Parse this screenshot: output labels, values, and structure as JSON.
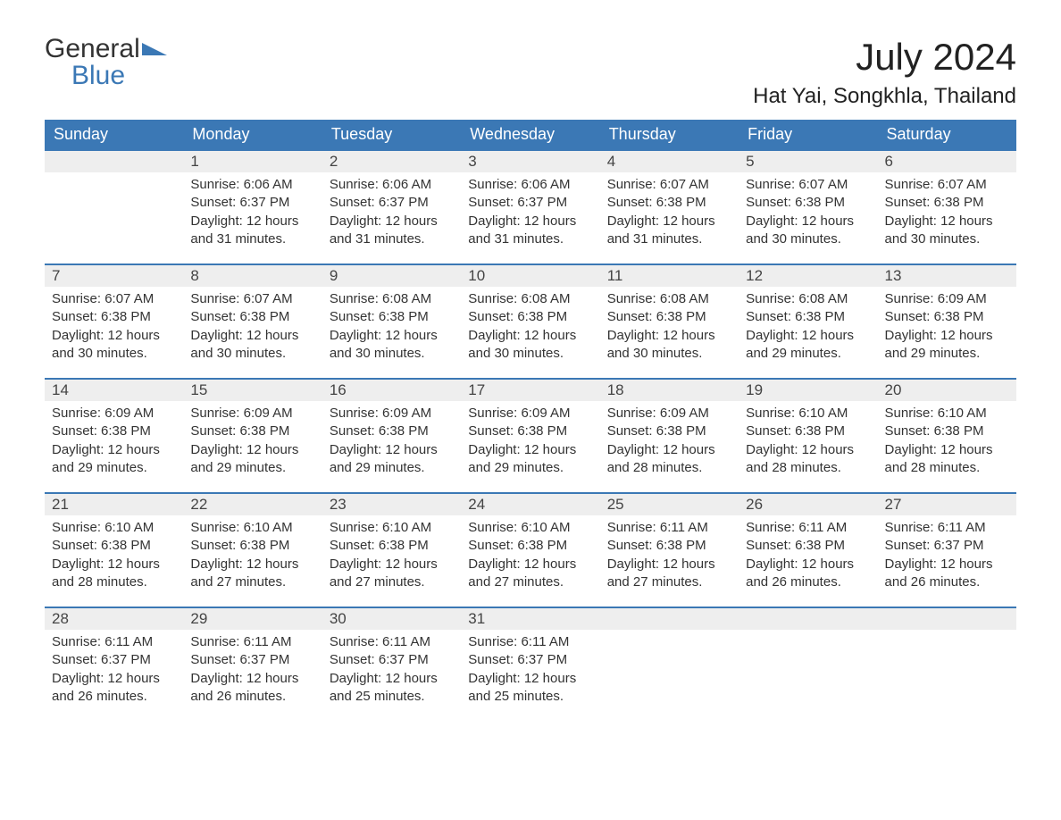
{
  "logo": {
    "line1": "General",
    "line2": "Blue"
  },
  "title": "July 2024",
  "location": "Hat Yai, Songkhla, Thailand",
  "colors": {
    "header_bg": "#3b78b5",
    "header_text": "#ffffff",
    "daynum_bg": "#eeeeee",
    "daynum_border": "#3b78b5",
    "body_bg": "#ffffff",
    "text": "#333333"
  },
  "weekdays": [
    "Sunday",
    "Monday",
    "Tuesday",
    "Wednesday",
    "Thursday",
    "Friday",
    "Saturday"
  ],
  "labels": {
    "sunrise": "Sunrise",
    "sunset": "Sunset",
    "daylight": "Daylight",
    "hours_word": "hours",
    "minutes_suffix": "minutes."
  },
  "weeks": [
    [
      null,
      {
        "day": "1",
        "sunrise": "6:06 AM",
        "sunset": "6:37 PM",
        "dl_h": "12",
        "dl_m": "31"
      },
      {
        "day": "2",
        "sunrise": "6:06 AM",
        "sunset": "6:37 PM",
        "dl_h": "12",
        "dl_m": "31"
      },
      {
        "day": "3",
        "sunrise": "6:06 AM",
        "sunset": "6:37 PM",
        "dl_h": "12",
        "dl_m": "31"
      },
      {
        "day": "4",
        "sunrise": "6:07 AM",
        "sunset": "6:38 PM",
        "dl_h": "12",
        "dl_m": "31"
      },
      {
        "day": "5",
        "sunrise": "6:07 AM",
        "sunset": "6:38 PM",
        "dl_h": "12",
        "dl_m": "30"
      },
      {
        "day": "6",
        "sunrise": "6:07 AM",
        "sunset": "6:38 PM",
        "dl_h": "12",
        "dl_m": "30"
      }
    ],
    [
      {
        "day": "7",
        "sunrise": "6:07 AM",
        "sunset": "6:38 PM",
        "dl_h": "12",
        "dl_m": "30"
      },
      {
        "day": "8",
        "sunrise": "6:07 AM",
        "sunset": "6:38 PM",
        "dl_h": "12",
        "dl_m": "30"
      },
      {
        "day": "9",
        "sunrise": "6:08 AM",
        "sunset": "6:38 PM",
        "dl_h": "12",
        "dl_m": "30"
      },
      {
        "day": "10",
        "sunrise": "6:08 AM",
        "sunset": "6:38 PM",
        "dl_h": "12",
        "dl_m": "30"
      },
      {
        "day": "11",
        "sunrise": "6:08 AM",
        "sunset": "6:38 PM",
        "dl_h": "12",
        "dl_m": "30"
      },
      {
        "day": "12",
        "sunrise": "6:08 AM",
        "sunset": "6:38 PM",
        "dl_h": "12",
        "dl_m": "29"
      },
      {
        "day": "13",
        "sunrise": "6:09 AM",
        "sunset": "6:38 PM",
        "dl_h": "12",
        "dl_m": "29"
      }
    ],
    [
      {
        "day": "14",
        "sunrise": "6:09 AM",
        "sunset": "6:38 PM",
        "dl_h": "12",
        "dl_m": "29"
      },
      {
        "day": "15",
        "sunrise": "6:09 AM",
        "sunset": "6:38 PM",
        "dl_h": "12",
        "dl_m": "29"
      },
      {
        "day": "16",
        "sunrise": "6:09 AM",
        "sunset": "6:38 PM",
        "dl_h": "12",
        "dl_m": "29"
      },
      {
        "day": "17",
        "sunrise": "6:09 AM",
        "sunset": "6:38 PM",
        "dl_h": "12",
        "dl_m": "29"
      },
      {
        "day": "18",
        "sunrise": "6:09 AM",
        "sunset": "6:38 PM",
        "dl_h": "12",
        "dl_m": "28"
      },
      {
        "day": "19",
        "sunrise": "6:10 AM",
        "sunset": "6:38 PM",
        "dl_h": "12",
        "dl_m": "28"
      },
      {
        "day": "20",
        "sunrise": "6:10 AM",
        "sunset": "6:38 PM",
        "dl_h": "12",
        "dl_m": "28"
      }
    ],
    [
      {
        "day": "21",
        "sunrise": "6:10 AM",
        "sunset": "6:38 PM",
        "dl_h": "12",
        "dl_m": "28"
      },
      {
        "day": "22",
        "sunrise": "6:10 AM",
        "sunset": "6:38 PM",
        "dl_h": "12",
        "dl_m": "27"
      },
      {
        "day": "23",
        "sunrise": "6:10 AM",
        "sunset": "6:38 PM",
        "dl_h": "12",
        "dl_m": "27"
      },
      {
        "day": "24",
        "sunrise": "6:10 AM",
        "sunset": "6:38 PM",
        "dl_h": "12",
        "dl_m": "27"
      },
      {
        "day": "25",
        "sunrise": "6:11 AM",
        "sunset": "6:38 PM",
        "dl_h": "12",
        "dl_m": "27"
      },
      {
        "day": "26",
        "sunrise": "6:11 AM",
        "sunset": "6:38 PM",
        "dl_h": "12",
        "dl_m": "26"
      },
      {
        "day": "27",
        "sunrise": "6:11 AM",
        "sunset": "6:37 PM",
        "dl_h": "12",
        "dl_m": "26"
      }
    ],
    [
      {
        "day": "28",
        "sunrise": "6:11 AM",
        "sunset": "6:37 PM",
        "dl_h": "12",
        "dl_m": "26"
      },
      {
        "day": "29",
        "sunrise": "6:11 AM",
        "sunset": "6:37 PM",
        "dl_h": "12",
        "dl_m": "26"
      },
      {
        "day": "30",
        "sunrise": "6:11 AM",
        "sunset": "6:37 PM",
        "dl_h": "12",
        "dl_m": "25"
      },
      {
        "day": "31",
        "sunrise": "6:11 AM",
        "sunset": "6:37 PM",
        "dl_h": "12",
        "dl_m": "25"
      },
      null,
      null,
      null
    ]
  ]
}
